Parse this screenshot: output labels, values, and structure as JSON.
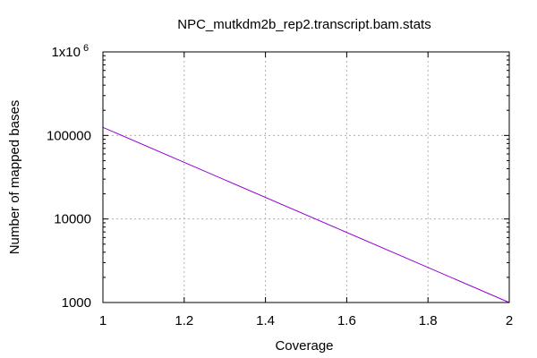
{
  "chart_data": {
    "type": "line",
    "title": "NPC_mutkdm2b_rep2.transcript.bam.stats",
    "xlabel": "Coverage",
    "ylabel": "Number of mapped bases",
    "xlim": [
      1,
      2
    ],
    "ylim": [
      1000,
      1000000
    ],
    "yscale": "log",
    "grid": true,
    "x_ticks": [
      1,
      1.2,
      1.4,
      1.6,
      1.8,
      2
    ],
    "x_tick_labels": [
      "1",
      "1.2",
      "1.4",
      "1.6",
      "1.8",
      "2"
    ],
    "y_ticks": [
      1000,
      10000,
      100000,
      1000000
    ],
    "y_tick_labels": [
      "1000",
      "10000",
      "100000",
      "1x10"
    ],
    "y_top_exponent": "6",
    "series": [
      {
        "color": "#9400d3",
        "x": [
          1,
          2
        ],
        "y": [
          125000,
          1000
        ]
      }
    ]
  }
}
